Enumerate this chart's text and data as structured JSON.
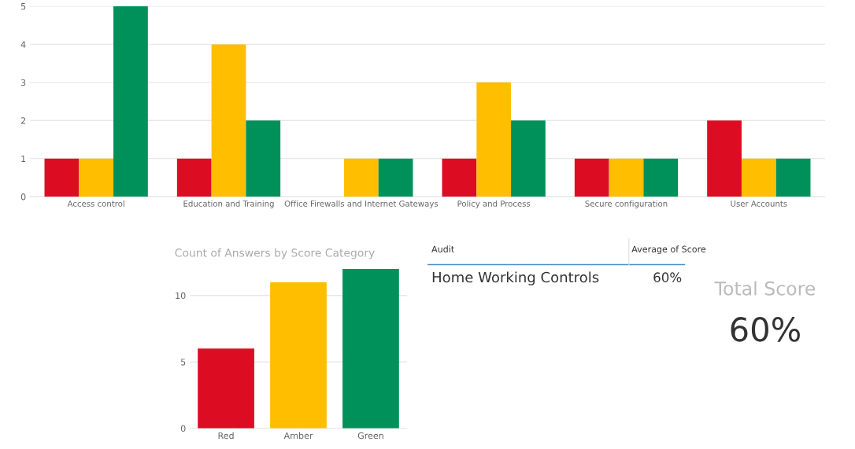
{
  "chart_data": [
    {
      "type": "bar",
      "categories": [
        "Access control",
        "Education and Training",
        "Office Firewalls and Internet Gateways",
        "Policy and Process",
        "Secure configuration",
        "User Accounts"
      ],
      "series": [
        {
          "color": "#dc0c23",
          "values": [
            1,
            1,
            0,
            1,
            1,
            2
          ]
        },
        {
          "color": "#ffbe00",
          "values": [
            1,
            4,
            1,
            3,
            1,
            1
          ]
        },
        {
          "color": "#00915a",
          "values": [
            5,
            2,
            1,
            2,
            1,
            1
          ]
        }
      ],
      "ylim": [
        0,
        5
      ],
      "yticks": [
        0,
        1,
        2,
        3,
        4,
        5
      ],
      "grid": "y",
      "legend": false
    },
    {
      "type": "bar",
      "title": "Count of Answers by Score Category",
      "categories": [
        "Red",
        "Amber",
        "Green"
      ],
      "values": [
        6,
        11,
        12
      ],
      "colors": [
        "#dc0c23",
        "#ffbe00",
        "#00915a"
      ],
      "ylim": [
        0,
        12.1
      ],
      "yticks": [
        0,
        5,
        10
      ],
      "grid": "y",
      "legend": false
    },
    {
      "type": "other",
      "annotations": [
        "Audit",
        "Average of Score",
        "Home Working Controls",
        "60%"
      ]
    },
    {
      "type": "other",
      "title": "Total Score",
      "annotations": [
        "60%"
      ]
    }
  ]
}
